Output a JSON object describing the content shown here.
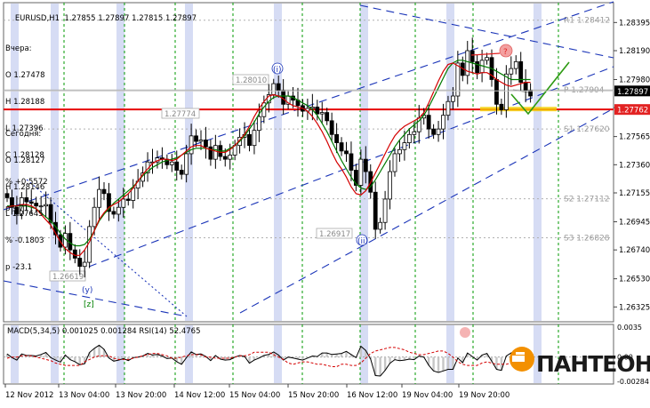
{
  "header": {
    "symbol": "EURUSD,H1",
    "quote": "1.27855 1.27897 1.27815 1.27897"
  },
  "yesterday": {
    "title": "Вчера:",
    "lines": [
      "O 1.27478",
      "H 1.28188",
      "L 1.27396",
      "C 1.28128",
      "% +0.5572",
      "p +71"
    ]
  },
  "today": {
    "title": "Сегодня:",
    "lines": [
      "O 1.28127",
      "H 1.28146",
      "L 1.27645",
      "% -0.1803",
      "p -23.1"
    ]
  },
  "colors": {
    "candle": "#000000",
    "ma_fast": "#d40000",
    "ma_slow": "#007a00",
    "channel": "#1a34b8",
    "resistance": "#e60000",
    "projection": "#2d9a12",
    "vgrid": "#009900",
    "highlight_band": "#c8d0f0",
    "tag_bg": "#e22222",
    "logo_orange": "#f39000"
  },
  "chart_data": [
    {
      "type": "candlestick",
      "title": "EURUSD,H1",
      "ylim": [
        1.2623,
        1.2852
      ],
      "y_ticks": [
        "1.28395",
        "1.28190",
        "1.27980",
        "1.27775",
        "1.27565",
        "1.27360",
        "1.27155",
        "1.26945",
        "1.26740",
        "1.26530",
        "1.26325"
      ],
      "x_ticks": [
        "12 Nov 2012",
        "13 Nov 04:00",
        "13 Nov 20:00",
        "14 Nov 12:00",
        "15 Nov 04:00",
        "15 Nov 20:00",
        "16 Nov 12:00",
        "19 Nov 04:00",
        "19 Nov 20:00"
      ],
      "current_price": "1.27897",
      "resistance_price": "1.27762",
      "level_labels": [
        {
          "text": "P 1.27904",
          "value": 1.27904
        },
        {
          "text": "S1 1.27620",
          "value": 1.2762
        },
        {
          "text": "S2 1.27112",
          "value": 1.27112
        },
        {
          "text": "S3 1.26828",
          "value": 1.26828
        },
        {
          "text": "R1 1.28412",
          "value": 1.28412
        }
      ],
      "price_annotations": [
        {
          "text": "1.28010",
          "value": 1.2801
        },
        {
          "text": "1.27774",
          "value": 1.27774
        },
        {
          "text": "1.26917",
          "value": 1.26917
        },
        {
          "text": "1.26619",
          "value": 1.26619
        }
      ],
      "wave_labels": [
        "(i)",
        "(ii)",
        "(y)",
        "[z]",
        "?"
      ],
      "series": [
        {
          "name": "close",
          "values": [
            1.2712,
            1.2705,
            1.27,
            1.2712,
            1.2709,
            1.2708,
            1.2706,
            1.2706,
            1.2707,
            1.2694,
            1.2685,
            1.2676,
            1.2686,
            1.2674,
            1.2668,
            1.2662,
            1.2665,
            1.2691,
            1.2705,
            1.2718,
            1.2715,
            1.2702,
            1.27,
            1.2705,
            1.2711,
            1.271,
            1.2719,
            1.2724,
            1.273,
            1.2738,
            1.2738,
            1.2741,
            1.274,
            1.2736,
            1.2738,
            1.2732,
            1.2729,
            1.2744,
            1.2757,
            1.2753,
            1.2754,
            1.2749,
            1.274,
            1.275,
            1.2742,
            1.274,
            1.2743,
            1.275,
            1.2756,
            1.2758,
            1.275,
            1.2761,
            1.2771,
            1.2781,
            1.2787,
            1.2795,
            1.279,
            1.278,
            1.2786,
            1.2783,
            1.2779,
            1.2775,
            1.2777,
            1.2778,
            1.2773,
            1.2774,
            1.2768,
            1.2758,
            1.2752,
            1.2746,
            1.2744,
            1.2732,
            1.2721,
            1.274,
            1.2731,
            1.2716,
            1.2689,
            1.2694,
            1.2711,
            1.2731,
            1.2744,
            1.2747,
            1.2752,
            1.2758,
            1.276,
            1.277,
            1.2772,
            1.2762,
            1.2758,
            1.2762,
            1.2772,
            1.2782,
            1.2786,
            1.281,
            1.2801,
            1.2819,
            1.2811,
            1.2803,
            1.2812,
            1.2814,
            1.2798,
            1.278,
            1.2776,
            1.2802,
            1.2806,
            1.2811,
            1.2796,
            1.279,
            1.2786
          ]
        },
        {
          "name": "MA fast",
          "values": [
            1.2705,
            1.2706,
            1.2706,
            1.2707,
            1.2707,
            1.2706,
            1.2704,
            1.27,
            1.2696,
            1.2692,
            1.2686,
            1.268,
            1.2675,
            1.2672,
            1.267,
            1.267,
            1.2674,
            1.268,
            1.2688,
            1.2696,
            1.2701,
            1.2705,
            1.2707,
            1.2709,
            1.2712,
            1.2715,
            1.2719,
            1.2724,
            1.2729,
            1.2733,
            1.2737,
            1.2739,
            1.274,
            1.274,
            1.2739,
            1.274,
            1.2743,
            1.2746,
            1.2749,
            1.275,
            1.275,
            1.2748,
            1.2747,
            1.2746,
            1.2745,
            1.2745,
            1.2747,
            1.275,
            1.2754,
            1.2758,
            1.2764,
            1.2771,
            1.2777,
            1.2782,
            1.2786,
            1.2787,
            1.2786,
            1.2784,
            1.2781,
            1.2779,
            1.2778,
            1.2777,
            1.2775,
            1.2771,
            1.2766,
            1.276,
            1.2753,
            1.2745,
            1.2738,
            1.2733,
            1.2727,
            1.272,
            1.2715,
            1.2714,
            1.2717,
            1.2723,
            1.273,
            1.2737,
            1.2744,
            1.2751,
            1.2757,
            1.2761,
            1.2764,
            1.2766,
            1.2768,
            1.277,
            1.2774,
            1.2781,
            1.2789,
            1.2797,
            1.2804,
            1.2809,
            1.281,
            1.2808,
            1.2806,
            1.2804,
            1.2803,
            1.2802,
            1.2803,
            1.2803,
            1.2801,
            1.2798,
            1.2796,
            1.2794,
            1.2793,
            1.2794,
            1.2795,
            1.2796,
            1.2796
          ]
        },
        {
          "name": "MA slow",
          "values": [
            1.2706,
            1.2706,
            1.2706,
            1.2706,
            1.2706,
            1.2705,
            1.2704,
            1.2701,
            1.2698,
            1.2695,
            1.2691,
            1.2686,
            1.2682,
            1.2679,
            1.2677,
            1.2677,
            1.2678,
            1.2682,
            1.2688,
            1.2695,
            1.27,
            1.2704,
            1.2708,
            1.2711,
            1.2714,
            1.2717,
            1.272,
            1.2724,
            1.2728,
            1.2731,
            1.2734,
            1.2736,
            1.2738,
            1.2739,
            1.274,
            1.2741,
            1.2743,
            1.2745,
            1.2747,
            1.2748,
            1.2748,
            1.2748,
            1.2747,
            1.2747,
            1.2746,
            1.2746,
            1.2748,
            1.275,
            1.2753,
            1.2757,
            1.2762,
            1.2767,
            1.2773,
            1.2778,
            1.2782,
            1.2785,
            1.2786,
            1.2786,
            1.2786,
            1.2785,
            1.2783,
            1.2781,
            1.2779,
            1.2776,
            1.2772,
            1.2766,
            1.276,
            1.2753,
            1.2746,
            1.2739,
            1.2733,
            1.2727,
            1.2722,
            1.2719,
            1.2718,
            1.272,
            1.2725,
            1.2731,
            1.2737,
            1.2743,
            1.2749,
            1.2754,
            1.2758,
            1.2762,
            1.2765,
            1.2768,
            1.2772,
            1.2778,
            1.2785,
            1.2792,
            1.2799,
            1.2806,
            1.281,
            1.2812,
            1.2812,
            1.2811,
            1.281,
            1.2809,
            1.2808,
            1.2807,
            1.2806,
            1.2804,
            1.2802,
            1.28,
            1.2798,
            1.2798,
            1.2798,
            1.2798,
            1.2798
          ]
        }
      ]
    },
    {
      "type": "line",
      "title": "MACD(5,34,5) 0.001025 0.001284 RSI(14) 52.4765",
      "ylim": [
        -0.00284,
        0.0035
      ],
      "y_ticks": [
        "0.0035",
        "0.00",
        "-0.00284"
      ]
    }
  ],
  "logo": {
    "text": "ПАНТЕОН"
  }
}
